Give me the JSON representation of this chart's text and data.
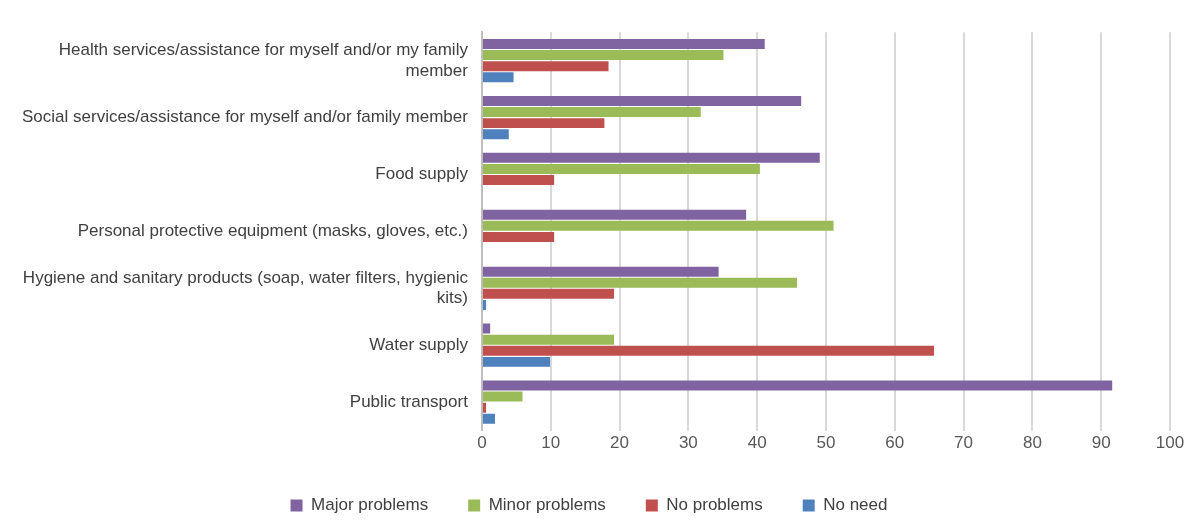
{
  "chart_data": {
    "type": "bar",
    "orientation": "horizontal",
    "categories": [
      "Health services/assistance for myself and/or my family member",
      "Social services/assistance for myself and/or family member",
      "Food supply",
      "Personal protective equipment (masks, gloves, etc.)",
      "Hygiene and sanitary products (soap, water filters, hygienic kits)",
      "Water supply",
      "Public transport"
    ],
    "series": [
      {
        "name": "Major problems",
        "color": "#8064a2",
        "values": [
          41.1,
          46.4,
          49.1,
          38.4,
          34.4,
          1.2,
          91.6
        ]
      },
      {
        "name": "Minor problems",
        "color": "#9bbb59",
        "values": [
          35.1,
          31.8,
          40.4,
          51.1,
          45.8,
          19.2,
          5.9
        ]
      },
      {
        "name": "No problems",
        "color": "#c0504d",
        "values": [
          18.4,
          17.8,
          10.5,
          10.5,
          19.2,
          65.7,
          0.6
        ]
      },
      {
        "name": "No need",
        "color": "#4f81bd",
        "values": [
          4.6,
          3.9,
          null,
          null,
          0.6,
          9.9,
          1.9
        ]
      }
    ],
    "xlim": [
      0,
      100
    ],
    "xticks": [
      0,
      10,
      20,
      30,
      40,
      50,
      60,
      70,
      80,
      90,
      100
    ],
    "grid": "x",
    "legend": "bottom"
  }
}
